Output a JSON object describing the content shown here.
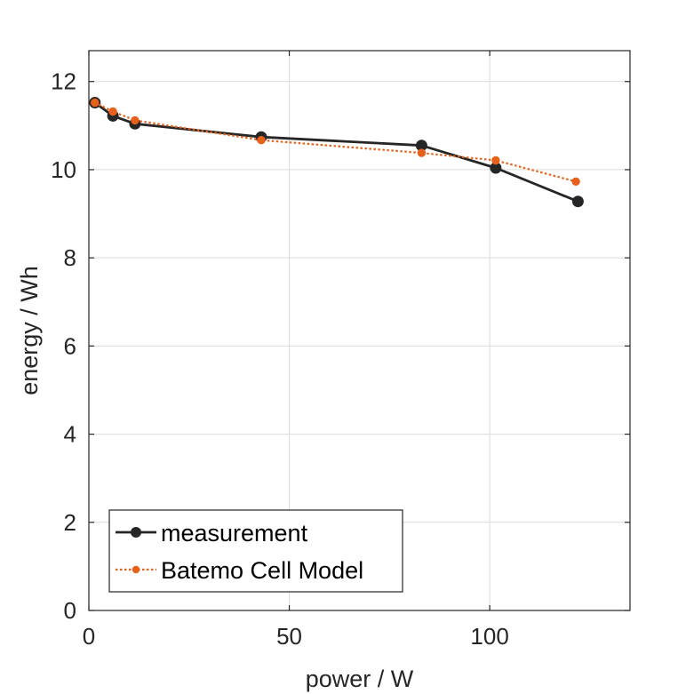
{
  "chart_data": {
    "type": "line",
    "title": "",
    "xlabel": "power / W",
    "ylabel": "energy / Wh",
    "xlim": [
      0,
      135
    ],
    "ylim": [
      0,
      12.7
    ],
    "x_ticks": [
      0,
      50,
      100
    ],
    "y_ticks": [
      0,
      2,
      4,
      6,
      8,
      10,
      12
    ],
    "grid": true,
    "legend_position": "bottom-left",
    "series": [
      {
        "name": "measurement",
        "color": "#262626",
        "line_style": "solid",
        "marker": "circle",
        "x": [
          1.5,
          6,
          11.5,
          43,
          83,
          101.5,
          122
        ],
        "y": [
          11.52,
          11.22,
          11.04,
          10.74,
          10.55,
          10.04,
          9.28
        ]
      },
      {
        "name": "Batemo Cell Model",
        "color": "#E8611A",
        "line_style": "dotted",
        "marker": "circle",
        "x": [
          1.5,
          6,
          11.5,
          43,
          83,
          101.5,
          121.5
        ],
        "y": [
          11.52,
          11.32,
          11.12,
          10.67,
          10.38,
          10.21,
          9.73
        ]
      }
    ]
  }
}
